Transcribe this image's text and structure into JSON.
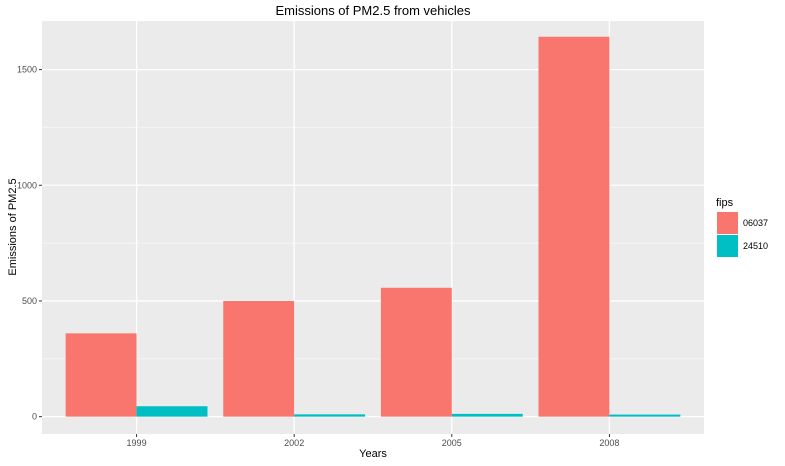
{
  "chart_data": {
    "type": "bar",
    "title": "Emissions of PM2.5 from vehicles",
    "xlabel": "Years",
    "ylabel": "Emissions of PM2.5",
    "categories": [
      "1999",
      "2002",
      "2005",
      "2008"
    ],
    "series": [
      {
        "name": "06037",
        "color": "#F8766D",
        "values": [
          360,
          500,
          557,
          1642
        ]
      },
      {
        "name": "24510",
        "color": "#00BFC4",
        "values": [
          45,
          10,
          12,
          9
        ]
      }
    ],
    "ylim": [
      -75,
      1710
    ],
    "yticks": [
      0,
      500,
      1000,
      1500
    ],
    "ytick_labels": [
      "0",
      "500",
      "1000",
      "1500"
    ],
    "legend": {
      "title": "fips",
      "placement": "right"
    },
    "grid": true,
    "panel_background": "#EBEBEB"
  }
}
